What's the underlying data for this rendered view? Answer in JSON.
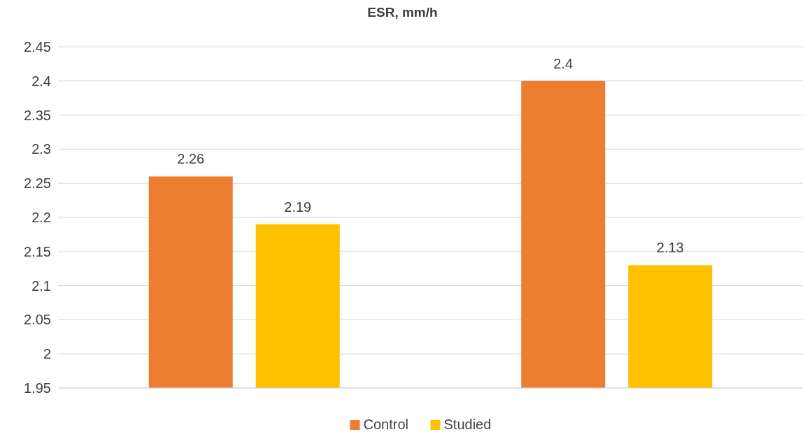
{
  "chart_data": {
    "type": "bar",
    "title": "ESR, mm/h",
    "categories": [
      null,
      null
    ],
    "series": [
      {
        "name": "Control",
        "color": "#ed7d31",
        "values": [
          2.26,
          2.4
        ]
      },
      {
        "name": "Studied",
        "color": "#ffc000",
        "values": [
          2.19,
          2.13
        ]
      }
    ],
    "ylim": [
      1.95,
      2.45
    ],
    "yticks": [
      1.95,
      2,
      2.05,
      2.1,
      2.15,
      2.2,
      2.25,
      2.3,
      2.35,
      2.4,
      2.45
    ],
    "grid": "y",
    "legend": "bottom",
    "data_labels": true
  }
}
